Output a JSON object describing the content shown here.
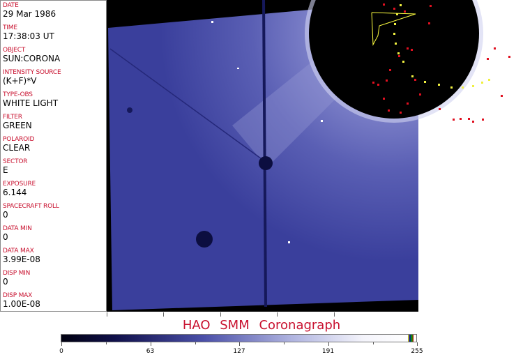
{
  "fields": [
    {
      "label": "DATE",
      "value": "29 Mar 1986"
    },
    {
      "label": "TIME",
      "value": "17:38:03 UT"
    },
    {
      "label": "OBJECT",
      "value": "SUN:CORONA"
    },
    {
      "label": "INTENSITY SOURCE",
      "value": "(K+F)*V"
    },
    {
      "label": "TYPE-OBS",
      "value": "WHITE LIGHT"
    },
    {
      "label": "FILTER",
      "value": "GREEN"
    },
    {
      "label": "POLAROID",
      "value": "CLEAR"
    },
    {
      "label": "SECTOR",
      "value": "E"
    },
    {
      "label": "EXPOSURE",
      "value": "6.144"
    },
    {
      "label": "SPACECRAFT ROLL",
      "value": "0"
    },
    {
      "label": "DATA MIN",
      "value": "0"
    },
    {
      "label": "DATA MAX",
      "value": "3.99E-08"
    },
    {
      "label": "DISP MIN",
      "value": "0"
    },
    {
      "label": "DISP MAX",
      "value": "1.00E-08"
    }
  ],
  "title": "HAO  SMM  Coronagraph",
  "colorbar": {
    "ticks": [
      "0",
      "63",
      "127",
      "191",
      "255"
    ],
    "min": 0,
    "max": 255
  },
  "colors": {
    "label": "#c8102e",
    "image_blue": "#3d42a0",
    "occulter": "#000000"
  }
}
